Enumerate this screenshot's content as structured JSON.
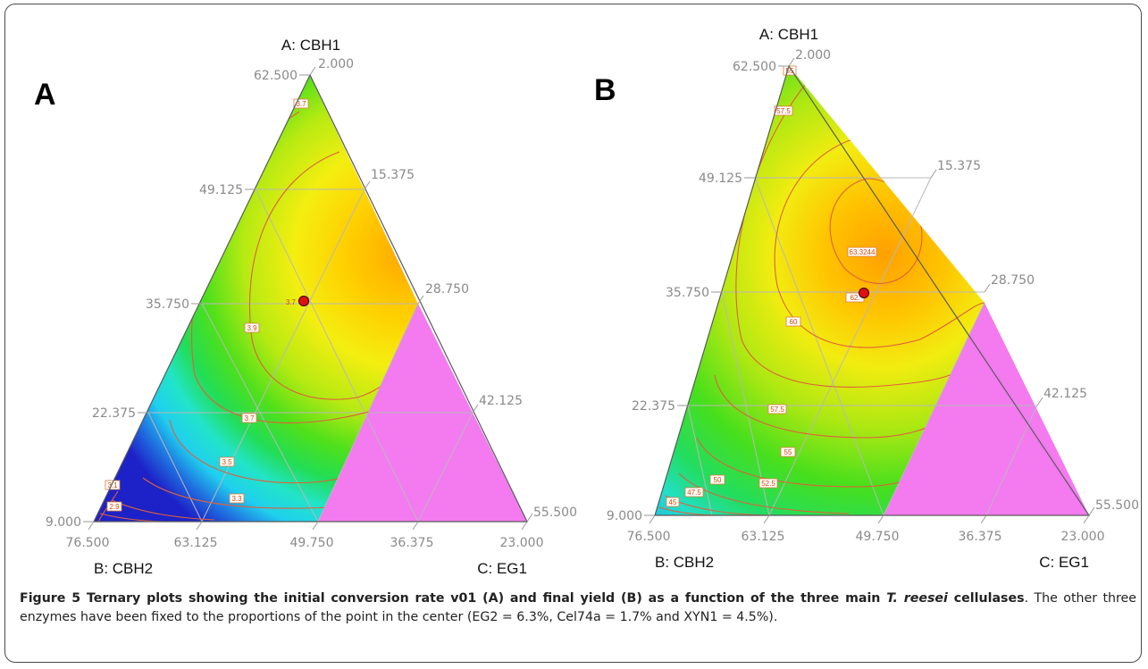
{
  "caption": {
    "lead": "Figure 5 Ternary plots showing the initial conversion rate v01 (A) and final yield (B) as a function of the three main ",
    "lead_italic": "T. reesei",
    "lead_end": " cellulases",
    "rest": ". The other three enzymes have been fixed to the proportions of the point in the center (EG2 = 6.3%, Cel74a = 1.7% and XYN1 = 4.5%)."
  },
  "colors": {
    "excluded_region": "#f47af0",
    "contour": "#e0603a",
    "center_point": "#e21010",
    "grid": "#b5b5b5",
    "axis": "#555555"
  },
  "chart_data": [
    {
      "type": "heatmap",
      "panel_label": "A",
      "axes": {
        "a": {
          "label": "A: CBH1",
          "ticks": [
            "2.000",
            "15.375",
            "28.750",
            "42.125",
            "55.500"
          ]
        },
        "a_left": {
          "ticks": [
            "62.500",
            "49.125",
            "35.750",
            "22.375",
            "9.000"
          ]
        },
        "b": {
          "label": "B: CBH2",
          "ticks": [
            "76.500",
            "63.125",
            "49.750",
            "36.375",
            "23.000"
          ]
        },
        "c": {
          "label": "C: EG1"
        }
      },
      "contours": [
        {
          "value": "3.7",
          "label_positions": 2
        },
        {
          "value": "3.9",
          "label_positions": 1
        },
        {
          "value": "3.5",
          "label_positions": 1
        },
        {
          "value": "3.3",
          "label_positions": 1
        },
        {
          "value": "3.1",
          "label_positions": 1
        },
        {
          "value": "2.9",
          "label_positions": 1
        }
      ],
      "center_point_label": "3.7",
      "color_scale": "blue (low) to green, yellow, orange (high)",
      "excluded_region": "C: EG1 corner"
    },
    {
      "type": "heatmap",
      "panel_label": "B",
      "axes": {
        "a": {
          "label": "A: CBH1",
          "ticks": [
            "2.000",
            "15.375",
            "28.750",
            "42.125",
            "55.500"
          ]
        },
        "a_left": {
          "ticks": [
            "62.500",
            "49.125",
            "35.750",
            "22.375",
            "9.000"
          ]
        },
        "b": {
          "label": "B: CBH2",
          "ticks": [
            "76.500",
            "63.125",
            "49.750",
            "36.375",
            "23.000"
          ]
        },
        "c": {
          "label": "C: EG1"
        }
      },
      "contours": [
        {
          "value": "55"
        },
        {
          "value": "57.5"
        },
        {
          "value": "60"
        },
        {
          "value": "63.3244"
        },
        {
          "value": "52.5"
        },
        {
          "value": "50"
        },
        {
          "value": "47.5"
        },
        {
          "value": "45"
        }
      ],
      "center_point_label": "62.",
      "color_scale": "blue (low) to green, yellow, orange (high)",
      "excluded_region": "C: EG1 corner"
    }
  ]
}
